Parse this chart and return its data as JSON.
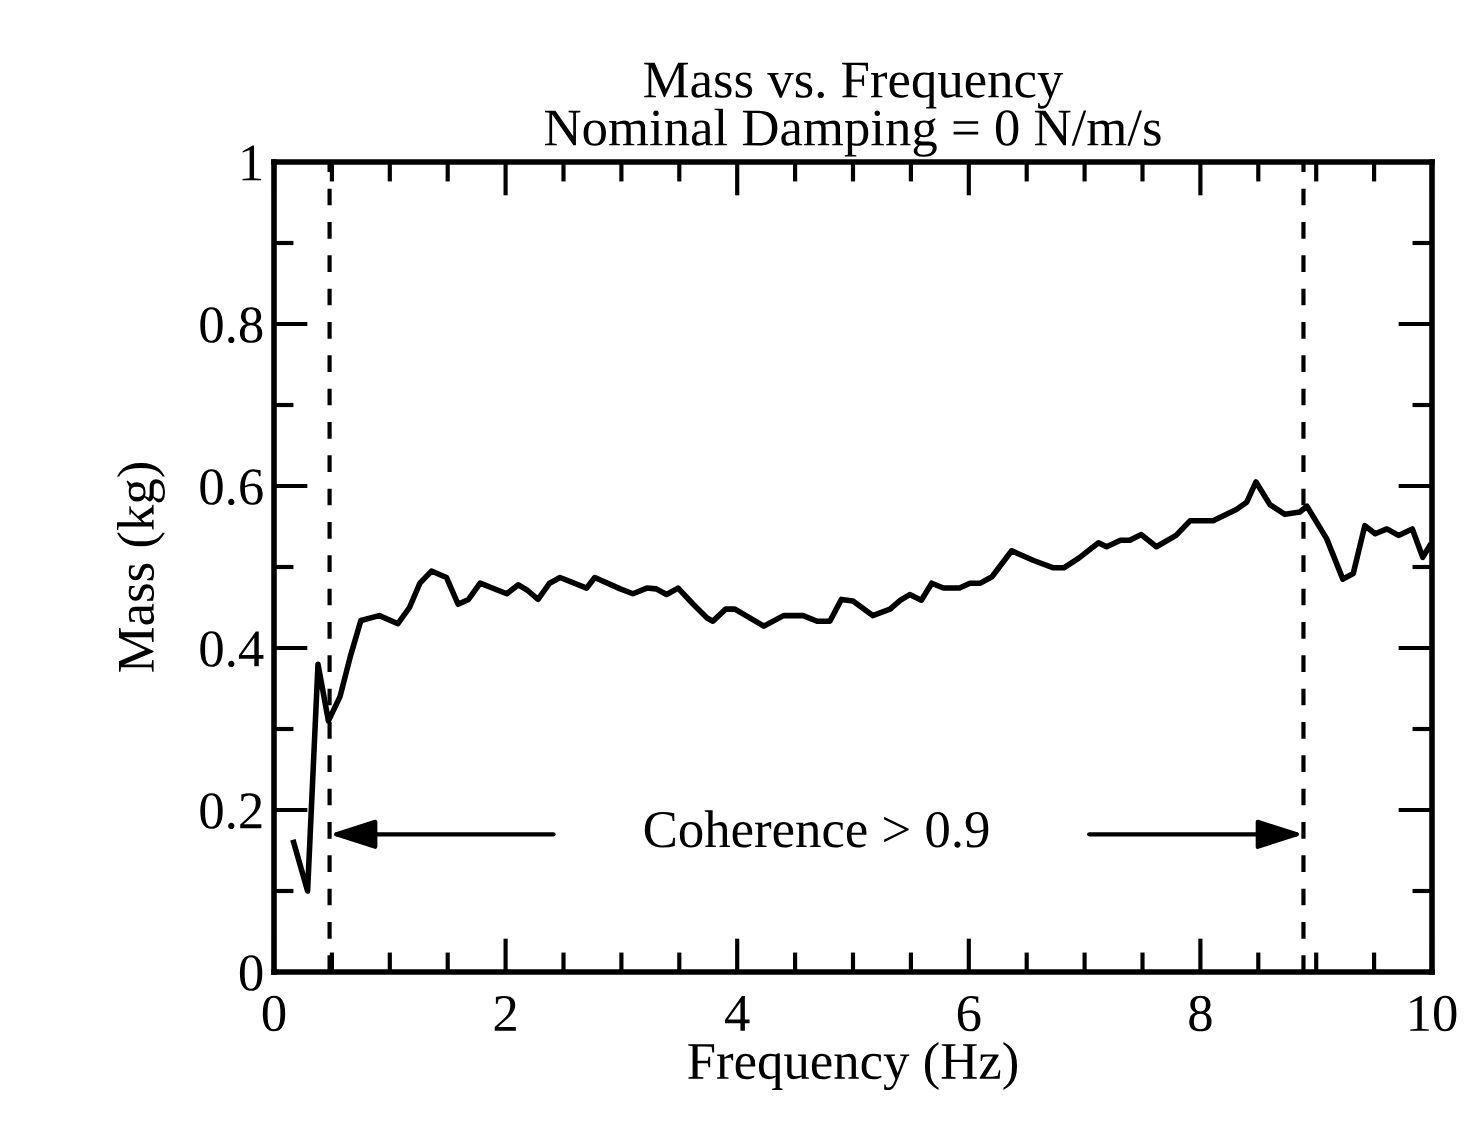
{
  "chart_data": {
    "type": "line",
    "title": "Mass vs. Frequency",
    "subtitle": "Nominal Damping = 0 N/m/s",
    "xlabel": "Frequency (Hz)",
    "ylabel": "Mass (kg)",
    "xlim": [
      0,
      10
    ],
    "ylim": [
      0,
      1
    ],
    "xticks": [
      0,
      2,
      4,
      6,
      8,
      10
    ],
    "yticks": [
      0,
      0.2,
      0.4,
      0.6,
      0.8,
      1
    ],
    "series": [
      {
        "color": "#000000",
        "x": [
          0.17,
          0.29,
          0.38,
          0.47,
          0.57,
          0.66,
          0.75,
          0.91,
          1.07,
          1.17,
          1.26,
          1.36,
          1.49,
          1.59,
          1.68,
          1.78,
          2.01,
          2.11,
          2.19,
          2.28,
          2.38,
          2.47,
          2.7,
          2.77,
          2.99,
          3.1,
          3.22,
          3.3,
          3.39,
          3.49,
          3.62,
          3.74,
          3.79,
          3.9,
          3.98,
          4.23,
          4.4,
          4.57,
          4.69,
          4.8,
          4.9,
          5.0,
          5.17,
          5.32,
          5.41,
          5.49,
          5.59,
          5.68,
          5.78,
          5.92,
          6.01,
          6.1,
          6.2,
          6.37,
          6.56,
          6.73,
          6.82,
          6.95,
          7.12,
          7.19,
          7.31,
          7.39,
          7.49,
          7.62,
          7.79,
          7.91,
          8.11,
          8.31,
          8.4,
          8.48,
          8.6,
          8.73,
          8.86,
          8.92,
          9.09,
          9.23,
          9.32,
          9.42,
          9.51,
          9.61,
          9.71,
          9.83,
          9.92,
          9.98
        ],
        "values": [
          0.16,
          0.1,
          0.38,
          0.31,
          0.34,
          0.39,
          0.434,
          0.44,
          0.43,
          0.45,
          0.48,
          0.495,
          0.487,
          0.454,
          0.46,
          0.48,
          0.467,
          0.478,
          0.471,
          0.46,
          0.48,
          0.487,
          0.474,
          0.487,
          0.473,
          0.467,
          0.474,
          0.473,
          0.466,
          0.474,
          0.454,
          0.437,
          0.433,
          0.448,
          0.448,
          0.427,
          0.44,
          0.44,
          0.433,
          0.433,
          0.46,
          0.458,
          0.44,
          0.448,
          0.459,
          0.466,
          0.459,
          0.48,
          0.474,
          0.474,
          0.48,
          0.48,
          0.488,
          0.52,
          0.508,
          0.499,
          0.499,
          0.511,
          0.53,
          0.525,
          0.533,
          0.533,
          0.54,
          0.525,
          0.539,
          0.557,
          0.557,
          0.571,
          0.58,
          0.605,
          0.577,
          0.565,
          0.568,
          0.575,
          0.535,
          0.485,
          0.492,
          0.551,
          0.541,
          0.547,
          0.539,
          0.547,
          0.512,
          0.526
        ]
      }
    ],
    "ref_lines": [
      {
        "axis": "x",
        "value": 0.48,
        "line_style": "dashed",
        "color": "#000000"
      },
      {
        "axis": "x",
        "value": 8.89,
        "line_style": "dashed",
        "color": "#000000"
      }
    ],
    "annotations": [
      "Coherence > 0.9"
    ],
    "grid": false,
    "legend": false,
    "marker": "none",
    "line_style": "solid"
  }
}
